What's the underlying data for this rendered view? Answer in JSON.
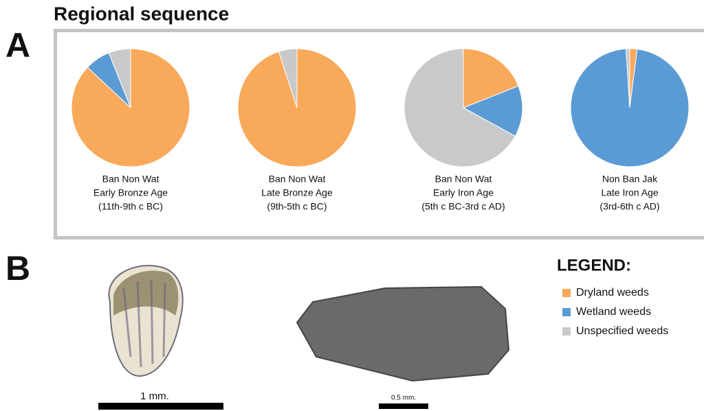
{
  "heading": "Regional sequence",
  "panel_labels": [
    "A",
    "B"
  ],
  "legend": {
    "title": "LEGEND:"
  },
  "scale_bars": [
    "1 mm.",
    "0.5 mm."
  ],
  "chart_data": [
    {
      "type": "pie",
      "title": [
        "Ban Non Wat",
        "Early Bronze Age",
        "(11th-9th c BC)"
      ],
      "categories": [
        "Dryland weeds",
        "Wetland weeds",
        "Unspecified weeds"
      ],
      "colors": [
        "#f8a95a",
        "#5b9bd5",
        "#c9c9c9"
      ],
      "values": [
        87,
        7,
        6
      ]
    },
    {
      "type": "pie",
      "title": [
        "Ban Non Wat",
        "Late Bronze Age",
        "(9th-5th c BC)"
      ],
      "categories": [
        "Dryland weeds",
        "Wetland weeds",
        "Unspecified weeds"
      ],
      "colors": [
        "#f8a95a",
        "#5b9bd5",
        "#c9c9c9"
      ],
      "values": [
        95,
        0,
        5
      ]
    },
    {
      "type": "pie",
      "title": [
        "Ban Non Wat",
        "Early Iron Age",
        "(5th c BC-3rd c AD)"
      ],
      "categories": [
        "Dryland weeds",
        "Wetland weeds",
        "Unspecified weeds"
      ],
      "colors": [
        "#f8a95a",
        "#5b9bd5",
        "#c9c9c9"
      ],
      "values": [
        19,
        14,
        67
      ]
    },
    {
      "type": "pie",
      "title": [
        "Non Ban Jak",
        "Late Iron Age",
        "(3rd-6th c AD)"
      ],
      "categories": [
        "Dryland weeds",
        "Wetland weeds",
        "Unspecified weeds"
      ],
      "colors": [
        "#f8a95a",
        "#5b9bd5",
        "#c9c9c9"
      ],
      "values": [
        2,
        97,
        1
      ]
    }
  ]
}
